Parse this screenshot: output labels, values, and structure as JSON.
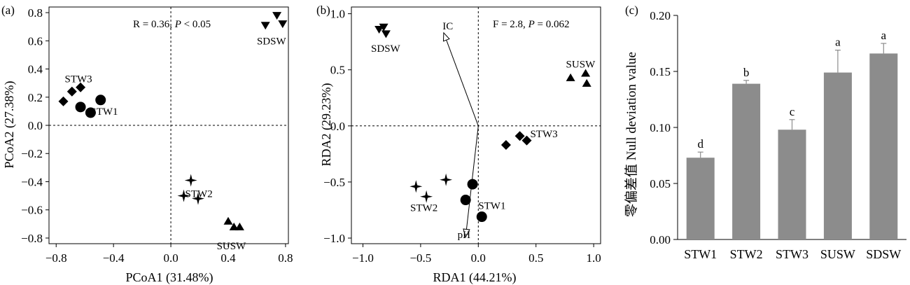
{
  "chart_data": [
    {
      "type": "scatter",
      "panel_label": "(a)",
      "xlabel": "PCoA1 (31.48%)",
      "ylabel": "PCoA2 (27.38%)",
      "annotation_plain": "R = 0.36, ",
      "annotation_italic": "P",
      "annotation_tail": " < 0.05",
      "xlim": [
        -0.85,
        0.82
      ],
      "ylim": [
        -0.84,
        0.84
      ],
      "xticks": [
        -0.8,
        -0.4,
        0.0,
        0.4,
        0.8
      ],
      "xtick_labels": [
        "−0.8",
        "−0.4",
        "0.0",
        "0.4",
        "0.8"
      ],
      "yticks": [
        -0.8,
        -0.6,
        -0.4,
        -0.2,
        0.0,
        0.2,
        0.4,
        0.6,
        0.8
      ],
      "ytick_labels": [
        "−0.8",
        "−0.6",
        "−0.4",
        "−0.2",
        "0.0",
        "0.2",
        "0.4",
        "0.6",
        "0.8"
      ],
      "reference_lines": {
        "x": 0,
        "y": 0
      },
      "groups": [
        {
          "label": "STW1",
          "marker": "circle",
          "label_pos": [
            -0.56,
            0.075
          ],
          "points": [
            [
              -0.63,
              0.13
            ],
            [
              -0.56,
              0.09
            ],
            [
              -0.49,
              0.18
            ]
          ]
        },
        {
          "label": "STW2",
          "marker": "star",
          "label_pos": [
            0.1,
            -0.51
          ],
          "points": [
            [
              0.14,
              -0.39
            ],
            [
              0.09,
              -0.5
            ],
            [
              0.19,
              -0.52
            ]
          ]
        },
        {
          "label": "STW3",
          "marker": "diamond",
          "label_pos": [
            -0.74,
            0.305
          ],
          "points": [
            [
              -0.75,
              0.17
            ],
            [
              -0.69,
              0.24
            ],
            [
              -0.63,
              0.27
            ]
          ]
        },
        {
          "label": "SUSW",
          "marker": "triangle-up",
          "label_pos": [
            0.32,
            -0.88
          ],
          "points": [
            [
              0.4,
              -0.68
            ],
            [
              0.44,
              -0.72
            ],
            [
              0.48,
              -0.72
            ]
          ]
        },
        {
          "label": "SDSW",
          "marker": "triangle-down",
          "label_pos": [
            0.6,
            0.575
          ],
          "points": [
            [
              0.66,
              0.71
            ],
            [
              0.74,
              0.78
            ],
            [
              0.78,
              0.72
            ]
          ]
        }
      ]
    },
    {
      "type": "scatter",
      "panel_label": "(b)",
      "xlabel": "RDA1 (44.21%)",
      "ylabel": "RDA2 (29.23%)",
      "annotation_plain": "F = 2.8, ",
      "annotation_italic": "P",
      "annotation_tail": " = 0.062",
      "xlim": [
        -1.1,
        1.06
      ],
      "ylim": [
        -1.05,
        1.06
      ],
      "xticks": [
        -1.0,
        -0.5,
        0.0,
        0.5,
        1.0
      ],
      "xtick_labels": [
        "−1.0",
        "−0.5",
        "0.0",
        "0.5",
        "1.0"
      ],
      "yticks": [
        -1.0,
        -0.5,
        0.0,
        0.5,
        1.0
      ],
      "ytick_labels": [
        "−1.0",
        "−0.5",
        "0.0",
        "0.5",
        "1.0"
      ],
      "reference_lines": {
        "x": 0,
        "y": 0
      },
      "vectors": [
        {
          "label": "IC",
          "x": -0.3,
          "y": 0.83,
          "label_pos": [
            -0.31,
            0.86
          ]
        },
        {
          "label": "pH",
          "x": -0.11,
          "y": -0.99,
          "label_pos": [
            -0.18,
            -1.0
          ]
        }
      ],
      "groups": [
        {
          "label": "STW1",
          "marker": "circle",
          "label_pos": [
            0.0,
            -0.74
          ],
          "points": [
            [
              -0.05,
              -0.52
            ],
            [
              -0.11,
              -0.66
            ],
            [
              0.03,
              -0.81
            ]
          ]
        },
        {
          "label": "STW2",
          "marker": "star",
          "label_pos": [
            -0.59,
            -0.76
          ],
          "points": [
            [
              -0.54,
              -0.54
            ],
            [
              -0.45,
              -0.63
            ],
            [
              -0.28,
              -0.48
            ]
          ]
        },
        {
          "label": "STW3",
          "marker": "diamond",
          "label_pos": [
            0.45,
            -0.1
          ],
          "points": [
            [
              0.24,
              -0.17
            ],
            [
              0.36,
              -0.09
            ],
            [
              0.42,
              -0.13
            ]
          ]
        },
        {
          "label": "SUSW",
          "marker": "triangle-up",
          "label_pos": [
            0.76,
            0.52
          ],
          "points": [
            [
              0.8,
              0.43
            ],
            [
              0.93,
              0.47
            ],
            [
              0.94,
              0.38
            ]
          ]
        },
        {
          "label": "SDSW",
          "marker": "triangle-down",
          "label_pos": [
            -0.93,
            0.66
          ],
          "points": [
            [
              -0.86,
              0.86
            ],
            [
              -0.82,
              0.88
            ],
            [
              -0.8,
              0.82
            ]
          ]
        }
      ]
    },
    {
      "type": "bar",
      "panel_label": "(c)",
      "ylabel_cn": "零偏差值",
      "ylabel_en": " Null deviation value",
      "ylim": [
        0,
        0.2
      ],
      "yticks": [
        0,
        0.05,
        0.1,
        0.15,
        0.2
      ],
      "ytick_labels": [
        "0.00",
        "0.05",
        "0.10",
        "0.15",
        "0.20"
      ],
      "categories": [
        "STW1",
        "STW2",
        "STW3",
        "SUSW",
        "SDSW"
      ],
      "values": [
        0.073,
        0.139,
        0.098,
        0.149,
        0.166
      ],
      "errors": [
        0.005,
        0.003,
        0.009,
        0.02,
        0.009
      ],
      "significance": [
        "d",
        "b",
        "c",
        "a",
        "a"
      ],
      "bar_color": "#8c8c8c"
    }
  ]
}
